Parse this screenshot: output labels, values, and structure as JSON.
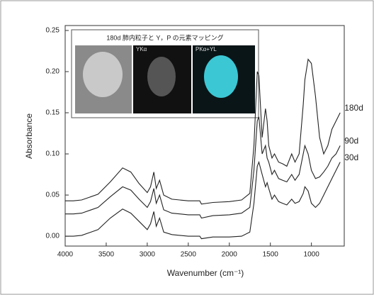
{
  "chart_data": {
    "type": "line",
    "xlabel": "Wavenumber (cm⁻¹)",
    "ylabel": "Absorbance",
    "x": [
      4000,
      3900,
      3800,
      3600,
      3450,
      3300,
      3200,
      3100,
      3000,
      2960,
      2920,
      2890,
      2850,
      2800,
      2700,
      2500,
      2360,
      2340,
      2200,
      2000,
      1850,
      1750,
      1700,
      1660,
      1640,
      1600,
      1560,
      1540,
      1520,
      1480,
      1450,
      1400,
      1350,
      1300,
      1240,
      1200,
      1150,
      1100,
      1080,
      1040,
      1000,
      950,
      900,
      850,
      800,
      750,
      700,
      650
    ],
    "series": [
      {
        "name": "180d",
        "color": "#222222",
        "values": [
          0.043,
          0.043,
          0.044,
          0.051,
          0.066,
          0.083,
          0.078,
          0.064,
          0.053,
          0.06,
          0.078,
          0.058,
          0.068,
          0.05,
          0.045,
          0.043,
          0.043,
          0.039,
          0.041,
          0.042,
          0.044,
          0.052,
          0.11,
          0.2,
          0.195,
          0.12,
          0.155,
          0.14,
          0.11,
          0.095,
          0.1,
          0.09,
          0.088,
          0.085,
          0.1,
          0.09,
          0.1,
          0.16,
          0.19,
          0.215,
          0.21,
          0.17,
          0.12,
          0.1,
          0.11,
          0.13,
          0.14,
          0.15
        ]
      },
      {
        "name": "90d",
        "color": "#222222",
        "values": [
          0.027,
          0.027,
          0.028,
          0.035,
          0.048,
          0.06,
          0.056,
          0.045,
          0.035,
          0.042,
          0.058,
          0.04,
          0.05,
          0.032,
          0.028,
          0.026,
          0.026,
          0.022,
          0.025,
          0.026,
          0.028,
          0.035,
          0.08,
          0.14,
          0.145,
          0.1,
          0.11,
          0.095,
          0.09,
          0.075,
          0.08,
          0.07,
          0.068,
          0.066,
          0.075,
          0.068,
          0.075,
          0.1,
          0.11,
          0.1,
          0.08,
          0.07,
          0.072,
          0.078,
          0.085,
          0.095,
          0.1,
          0.11
        ]
      },
      {
        "name": "30d",
        "color": "#222222",
        "values": [
          0.0,
          0.0,
          0.001,
          0.008,
          0.022,
          0.033,
          0.028,
          0.018,
          0.008,
          0.015,
          0.03,
          0.012,
          0.022,
          0.005,
          0.002,
          0.0,
          0.0,
          -0.003,
          -0.001,
          -0.001,
          0.0,
          0.005,
          0.04,
          0.085,
          0.09,
          0.075,
          0.06,
          0.065,
          0.058,
          0.045,
          0.05,
          0.042,
          0.04,
          0.038,
          0.045,
          0.04,
          0.042,
          0.052,
          0.06,
          0.055,
          0.04,
          0.035,
          0.04,
          0.05,
          0.06,
          0.07,
          0.08,
          0.09
        ]
      }
    ],
    "xlim": [
      4000,
      600
    ],
    "xticks": [
      4000,
      3500,
      3000,
      2500,
      2000,
      1500,
      1000
    ],
    "ylim": [
      -0.012,
      0.256
    ],
    "yticks": [
      {
        "value": 0,
        "label": "0.00"
      },
      {
        "value": 0.05,
        "label": "0.05"
      },
      {
        "value": 0.1,
        "label": "0.10"
      },
      {
        "value": 0.15,
        "label": "0.15"
      },
      {
        "value": 0.2,
        "label": "0.20"
      },
      {
        "value": 0.25,
        "label": "0.25"
      }
    ],
    "inset": {
      "title": "180d 肺内粒子と Y，P の元素マッピング",
      "labels": [
        "YKα",
        "PKα+YL"
      ]
    }
  }
}
